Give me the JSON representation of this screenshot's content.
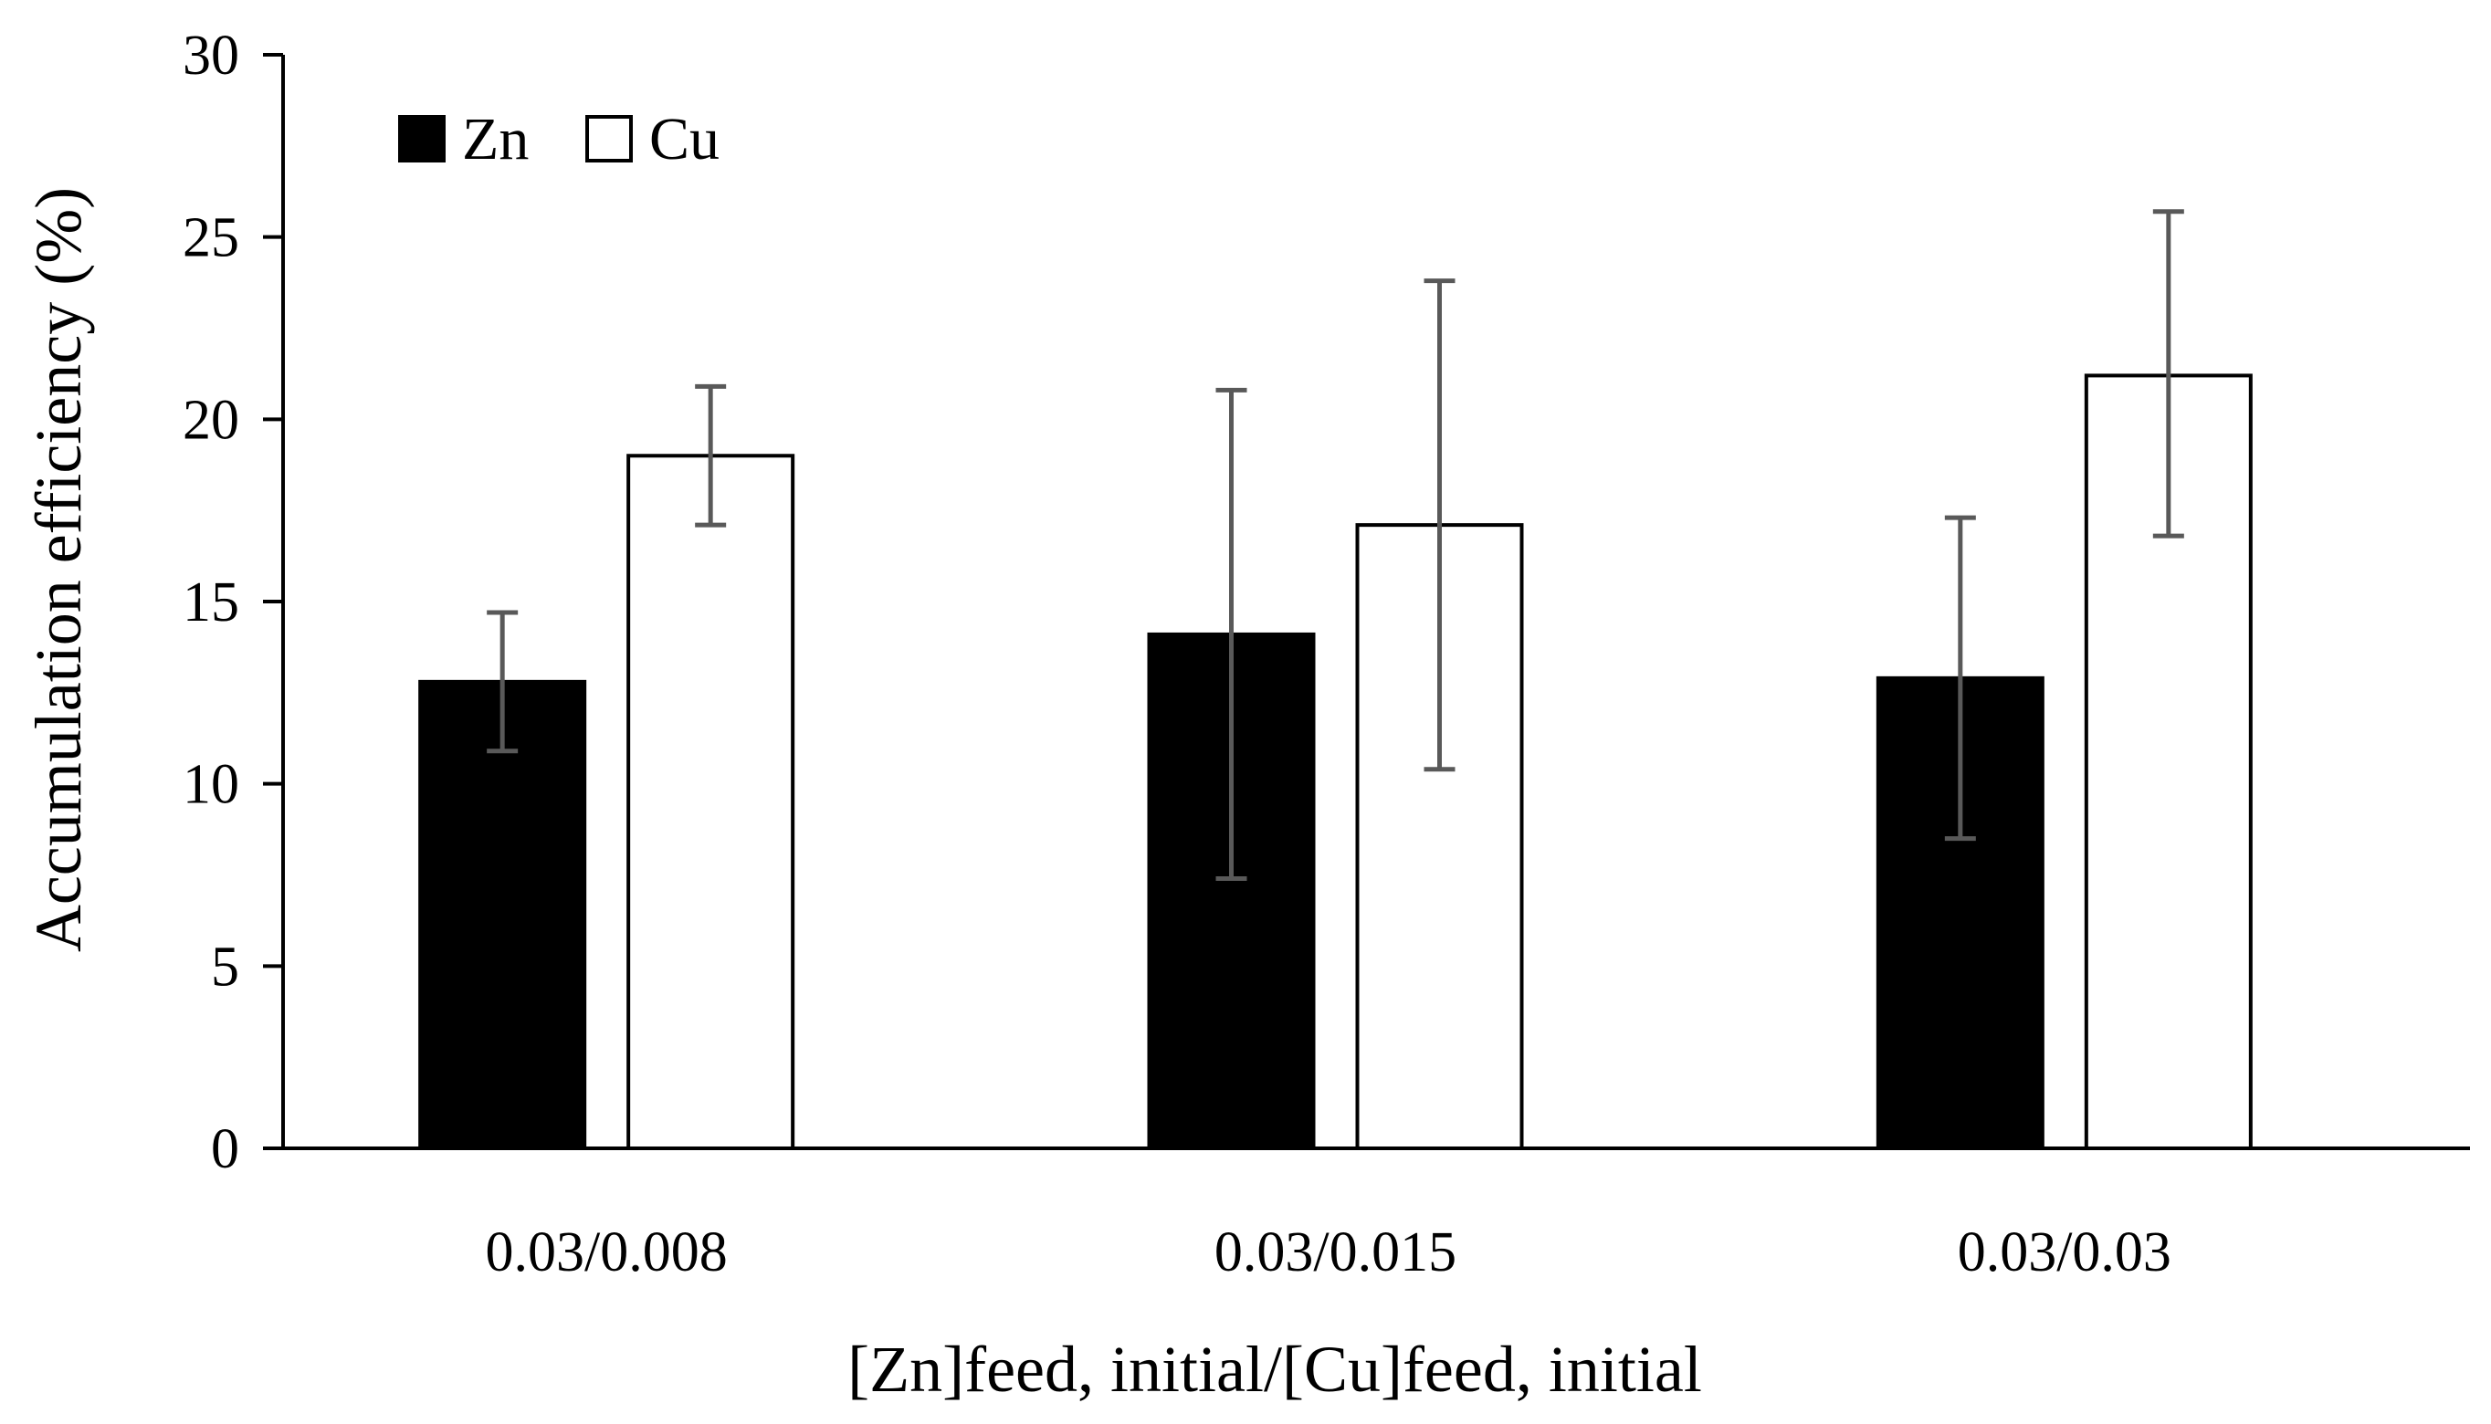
{
  "chart_data": {
    "type": "bar",
    "title": "",
    "xlabel": "[Zn]feed, initial/[Cu]feed, initial",
    "ylabel": "Accumulation efficiency (%)",
    "ylim": [
      0,
      30
    ],
    "yticks": [
      0,
      5,
      10,
      15,
      20,
      25,
      30
    ],
    "ytick_labels": [
      "0",
      "5",
      "10",
      "15",
      "20",
      "25",
      "30"
    ],
    "grid": false,
    "legend_position": "top-left",
    "categories": [
      "0.03/0.008",
      "0.03/0.015",
      "0.03/0.03"
    ],
    "series": [
      {
        "name": "Zn",
        "fill": "#000000",
        "values": [
          12.8,
          14.1,
          12.9
        ],
        "error_low": [
          10.9,
          7.4,
          8.5
        ],
        "error_high": [
          14.7,
          20.8,
          17.3
        ]
      },
      {
        "name": "Cu",
        "fill": "#ffffff",
        "values": [
          19.0,
          17.1,
          21.2
        ],
        "error_low": [
          17.1,
          10.4,
          16.8
        ],
        "error_high": [
          20.9,
          23.8,
          25.7
        ]
      }
    ],
    "colors": {
      "axis": "#000000",
      "error_bar": "#595959",
      "bar_outline": "#000000"
    }
  }
}
